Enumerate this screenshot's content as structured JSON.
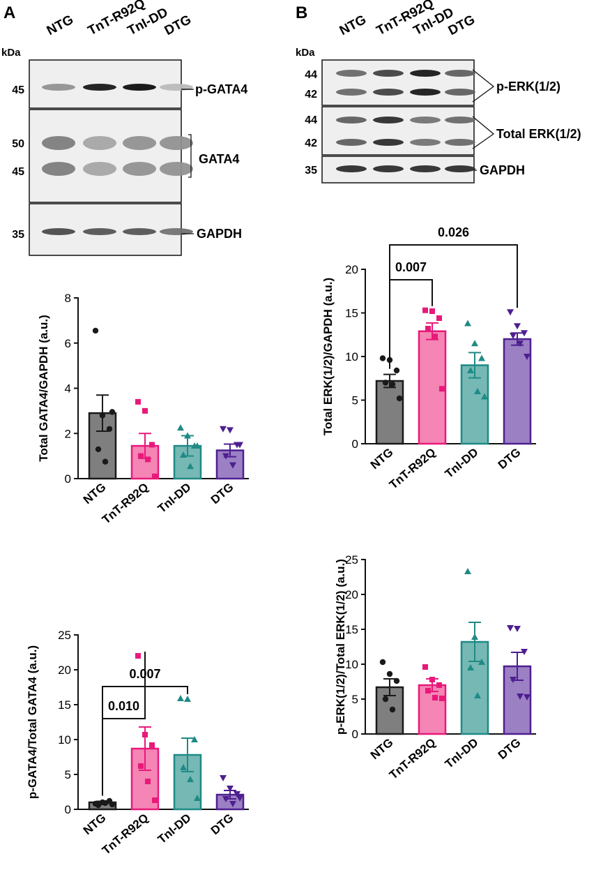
{
  "figure": {
    "panels": [
      {
        "id": "A"
      },
      {
        "id": "B"
      }
    ],
    "blot_a": {
      "kda_label": "kDa",
      "lanes": [
        "NTG",
        "TnT-R92Q",
        "TnI-DD",
        "DTG"
      ],
      "rows": [
        {
          "markers": [
            "45"
          ],
          "label": "p-GATA4",
          "bands": [
            0.35,
            0.95,
            1.0,
            0.15
          ]
        },
        {
          "markers": [
            "50",
            "45"
          ],
          "label": "GATA4",
          "bands": [
            0.45,
            0.25,
            0.35,
            0.35
          ]
        },
        {
          "markers": [
            "35"
          ],
          "label": "GAPDH",
          "bands": [
            0.7,
            0.65,
            0.65,
            0.5
          ]
        }
      ]
    },
    "blot_b": {
      "kda_label": "kDa",
      "lanes": [
        "NTG",
        "TnT-R92Q",
        "TnI-DD",
        "DTG"
      ],
      "rows": [
        {
          "markers": [
            "44",
            "42"
          ],
          "label": "p-ERK(1/2)",
          "bands": [
            0.55,
            0.75,
            0.95,
            0.6
          ]
        },
        {
          "markers": [
            "44",
            "42"
          ],
          "label": "Total ERK(1/2)",
          "bands": [
            0.6,
            0.85,
            0.5,
            0.55
          ]
        },
        {
          "markers": [
            "35"
          ],
          "label": "GAPDH",
          "bands": [
            0.85,
            0.85,
            0.85,
            0.85
          ]
        }
      ]
    },
    "colors": {
      "NTG": {
        "fill": "#7f7f7f",
        "stroke": "#1a1a1a"
      },
      "TnT-R92Q": {
        "fill": "#f485b4",
        "stroke": "#e8197a"
      },
      "TnI-DD": {
        "fill": "#76b8b4",
        "stroke": "#1f8a86"
      },
      "DTG": {
        "fill": "#9b80c4",
        "stroke": "#4e1f8f"
      }
    }
  },
  "chart_data": [
    {
      "type": "bar",
      "id": "total-gata4",
      "ylabel": "Total GATA4/GAPDH  (a.u.)",
      "categories": [
        "NTG",
        "TnT-R92Q",
        "TnI-DD",
        "DTG"
      ],
      "ylim": [
        0,
        8
      ],
      "yticks": [
        0,
        2,
        4,
        6,
        8
      ],
      "means": [
        2.9,
        1.45,
        1.45,
        1.25
      ],
      "sem": [
        0.8,
        0.55,
        0.45,
        0.28
      ],
      "points": [
        [
          6.55,
          2.8,
          2.2,
          1.3,
          0.75,
          2.95
        ],
        [
          3.4,
          3.0,
          1.5,
          1.0,
          0.85,
          0.1
        ],
        [
          2.25,
          1.9,
          1.45,
          1.05,
          0.55,
          1.45
        ],
        [
          2.2,
          2.15,
          1.5,
          1.0,
          0.6,
          1.5
        ]
      ],
      "comparisons": []
    },
    {
      "type": "bar",
      "id": "p-gata4-ratio",
      "ylabel": "p-GATA4/Total GATA4  (a.u.)",
      "categories": [
        "NTG",
        "TnT-R92Q",
        "TnI-DD",
        "DTG"
      ],
      "ylim": [
        0,
        25
      ],
      "yticks": [
        0,
        5,
        10,
        15,
        20,
        25
      ],
      "means": [
        1.0,
        8.7,
        7.8,
        2.1
      ],
      "sem": [
        0.15,
        3.1,
        2.4,
        0.6
      ],
      "points": [
        [
          0.8,
          1.0,
          1.2,
          0.6,
          0.9,
          0.7
        ],
        [
          22.0,
          10.7,
          9.2,
          6.2,
          4.0,
          1.3
        ],
        [
          15.9,
          15.8,
          10.0,
          6.0,
          4.3,
          1.6
        ],
        [
          4.5,
          3.0,
          2.2,
          1.5,
          0.8,
          1.6
        ]
      ],
      "comparisons": [
        {
          "from": "NTG",
          "to": "TnT-R92Q",
          "label": "0.010",
          "y": 13.0
        },
        {
          "from": "NTG",
          "to": "TnI-DD",
          "label": "0.007",
          "y": 17.6
        }
      ]
    },
    {
      "type": "bar",
      "id": "total-erk",
      "ylabel": "Total ERK(1/2)/GAPDH  (a.u.)",
      "categories": [
        "NTG",
        "TnT-R92Q",
        "TnI-DD",
        "DTG"
      ],
      "ylim": [
        0,
        20
      ],
      "yticks": [
        0,
        5,
        10,
        15,
        20
      ],
      "means": [
        7.2,
        12.9,
        9.0,
        12.0
      ],
      "sem": [
        0.75,
        0.95,
        1.45,
        0.7
      ],
      "points": [
        [
          9.8,
          9.6,
          8.4,
          7.0,
          6.8,
          5.2
        ],
        [
          15.3,
          15.2,
          14.4,
          13.2,
          12.3,
          6.3
        ],
        [
          13.8,
          11.5,
          9.8,
          8.4,
          6.0,
          5.4
        ],
        [
          15.1,
          13.5,
          12.7,
          12.4,
          11.5,
          10.0
        ]
      ],
      "comparisons": [
        {
          "from": "NTG",
          "to": "TnT-R92Q",
          "label": "0.007",
          "y": 18.8
        },
        {
          "from": "NTG",
          "to": "DTG",
          "label": "0.026",
          "y": 22.8
        }
      ]
    },
    {
      "type": "bar",
      "id": "p-erk-ratio",
      "ylabel": "p-ERK(1/2)/Total ERK(1/2) (a.u.)",
      "categories": [
        "NTG",
        "TnT-R92Q",
        "TnI-DD",
        "DTG"
      ],
      "ylim": [
        0,
        25
      ],
      "yticks": [
        0,
        5,
        10,
        15,
        20,
        25
      ],
      "means": [
        6.7,
        7.0,
        13.2,
        9.7
      ],
      "sem": [
        1.2,
        0.9,
        2.8,
        2.0
      ],
      "points": [
        [
          10.3,
          8.6,
          7.6,
          5.0,
          3.5
        ],
        [
          9.6,
          7.8,
          7.0,
          6.2,
          5.2,
          5.1
        ],
        [
          23.3,
          13.9,
          10.3,
          9.5,
          5.5
        ],
        [
          15.2,
          15.1,
          11.8,
          7.8,
          5.4,
          5.3
        ]
      ],
      "comparisons": []
    }
  ]
}
